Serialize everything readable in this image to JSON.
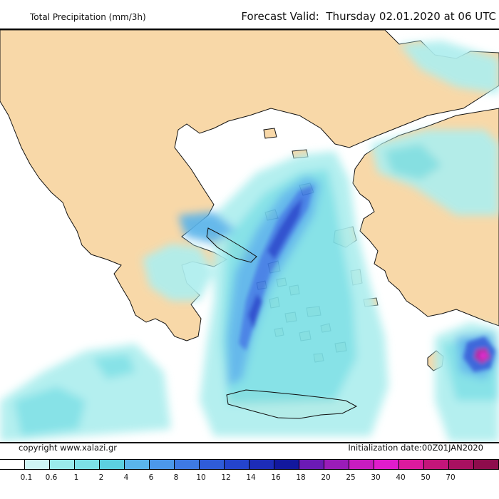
{
  "header": {
    "title": "Total Precipitation (mm/3h)",
    "forecast": "Forecast Valid:  Thursday 02.01.2020 at 06 UTC"
  },
  "footer": {
    "copyright": "copyright www.xalazi.gr",
    "initialization": "Initialization date:00Z01JAN2020"
  },
  "legend": {
    "colors": [
      "#ffffff",
      "#cff5f5",
      "#9aebeb",
      "#7de0e6",
      "#5cd0e0",
      "#5ab4ea",
      "#4c98ea",
      "#3e7ae4",
      "#2f5cd8",
      "#2444cc",
      "#1c2cb8",
      "#12189e",
      "#6b1ab4",
      "#9a1cb8",
      "#c81cc0",
      "#e01ccc",
      "#dc1a9e",
      "#c4157a",
      "#a81060",
      "#8e0c4c"
    ],
    "labels": [
      "0.1",
      "0.6",
      "1",
      "2",
      "4",
      "6",
      "8",
      "10",
      "12",
      "14",
      "16",
      "18",
      "20",
      "25",
      "30",
      "40",
      "50",
      "70"
    ]
  }
}
